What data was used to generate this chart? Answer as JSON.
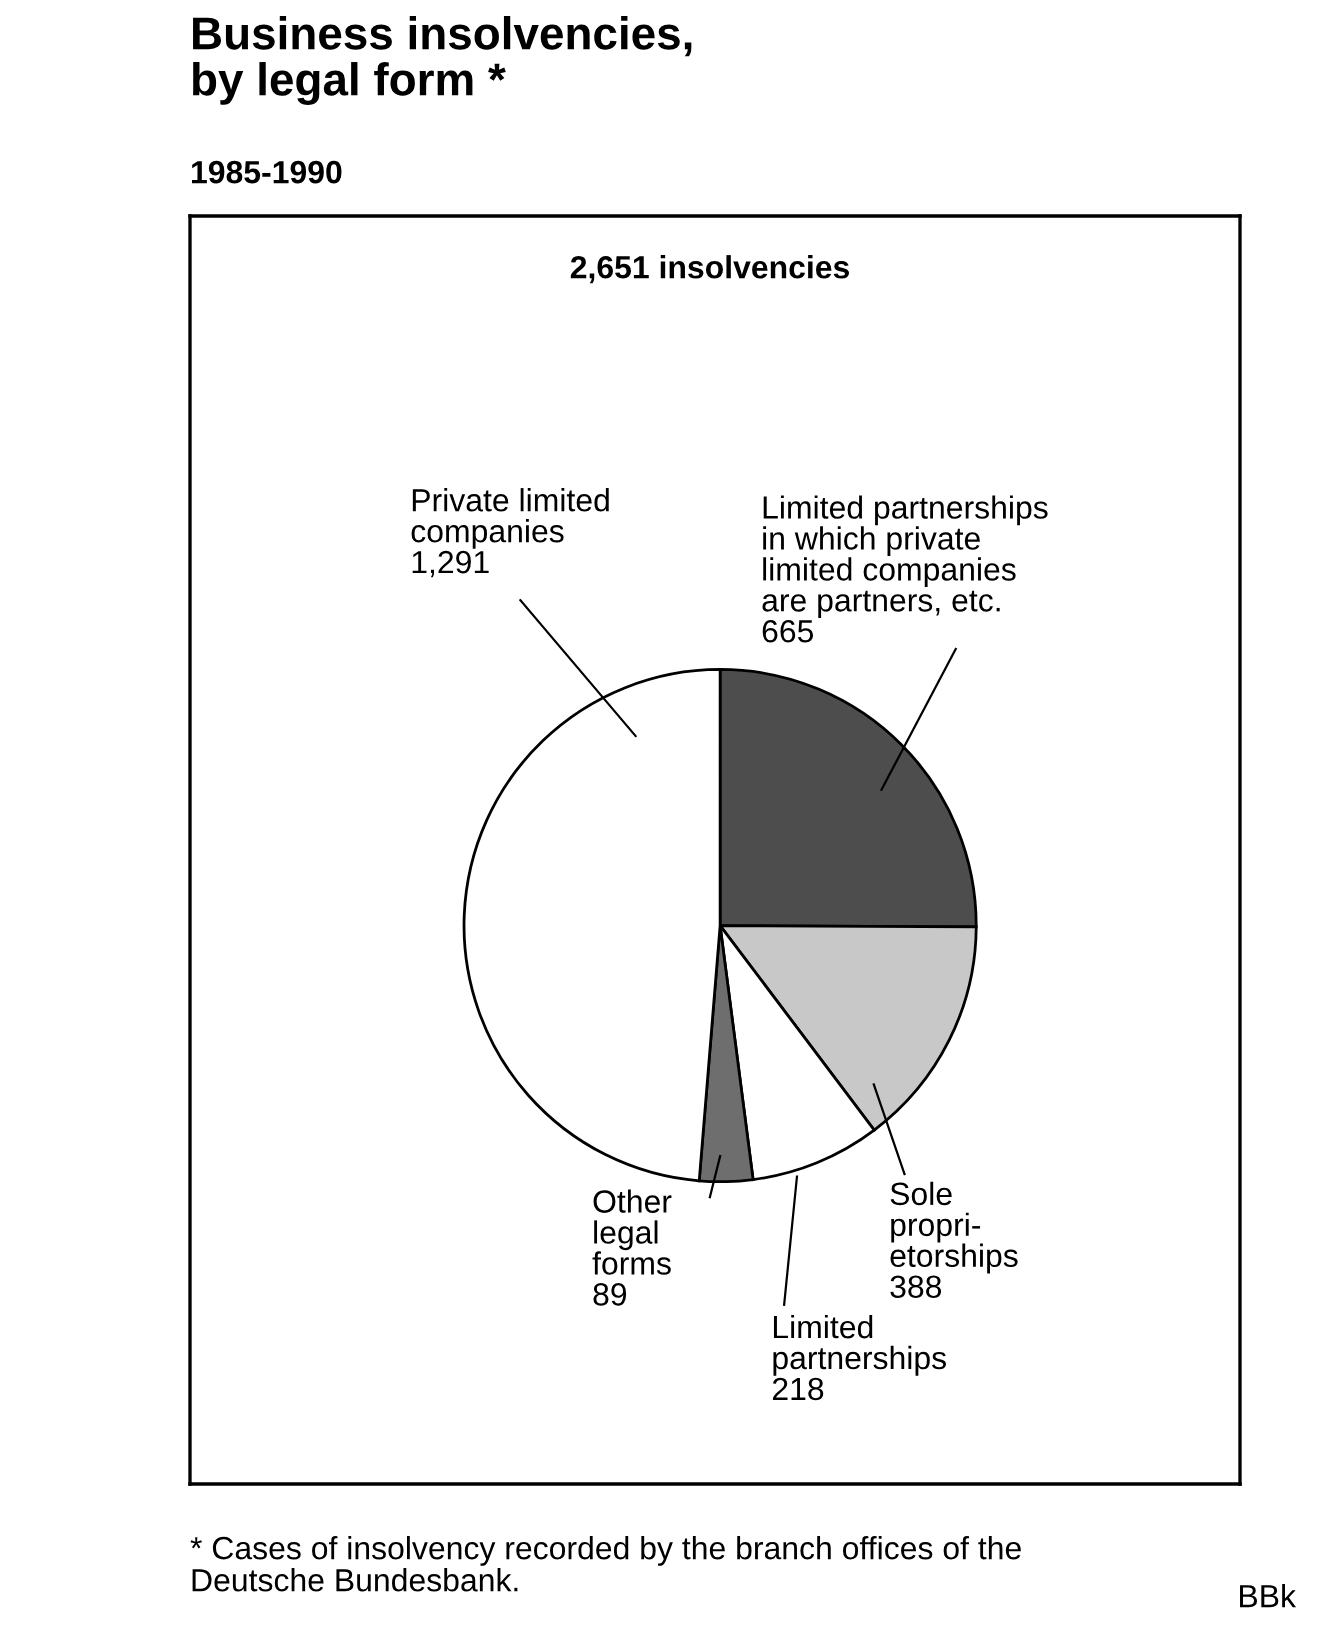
{
  "chart_data": {
    "type": "pie",
    "title": "Business insolvencies,\nby legal form *",
    "subtitle": "1985-1990",
    "categories": [
      "Limited partnerships\nin which private\nlimited companies\nare partners, etc.",
      "Sole\npropri-\netorships",
      "Limited\npartnerships",
      "Other\nlegal\nforms",
      "Private limited\ncompanies"
    ],
    "values": [
      665,
      388,
      218,
      89,
      1291
    ],
    "colors": [
      "#4d4d4d",
      "#c8c8c8",
      "#ffffff",
      "#6e6e6e",
      "#ffffff"
    ],
    "value_labels": [
      "665",
      "388",
      "218",
      "89",
      "1,291"
    ],
    "annotations": [
      "2,651 insolvencies",
      "* Cases of insolvency recorded by the branch offices of the\nDeutsche Bundesbank.",
      "BBk"
    ]
  }
}
